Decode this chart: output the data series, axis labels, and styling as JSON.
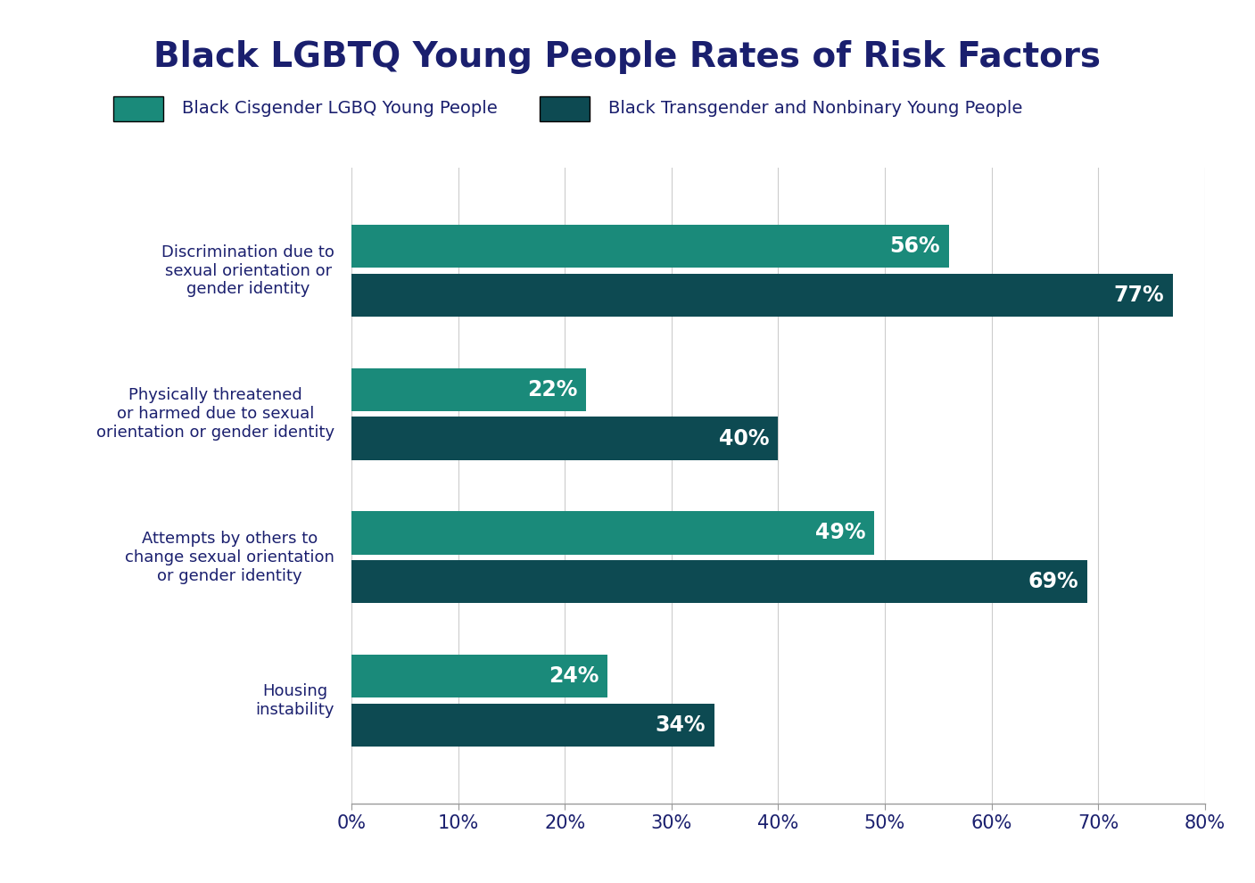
{
  "title": "Black LGBTQ Young People Rates of Risk Factors",
  "title_color": "#1a1f6e",
  "title_fontsize": 28,
  "background_color": "#ffffff",
  "categories": [
    "Discrimination due to\nsexual orientation or\ngender identity",
    "Physically threatened\nor harmed due to sexual\norientation or gender identity",
    "Attempts by others to\nchange sexual orientation\nor gender identity",
    "Housing\ninstability"
  ],
  "cisgender_values": [
    56,
    22,
    49,
    24
  ],
  "transgender_values": [
    77,
    40,
    69,
    34
  ],
  "cisgender_color": "#1a8a7a",
  "transgender_color": "#0d4a52",
  "label_color": "#ffffff",
  "label_fontsize": 17,
  "legend_label_cisgender": "Black Cisgender LGBQ Young People",
  "legend_label_transgender": "Black Transgender and Nonbinary Young People",
  "legend_fontsize": 14,
  "axis_label_color": "#1a1f6e",
  "axis_tick_fontsize": 15,
  "xlim": [
    0,
    80
  ],
  "xticks": [
    0,
    10,
    20,
    30,
    40,
    50,
    60,
    70,
    80
  ],
  "bar_height": 0.3,
  "bar_gap": 0.04,
  "category_fontsize": 13
}
